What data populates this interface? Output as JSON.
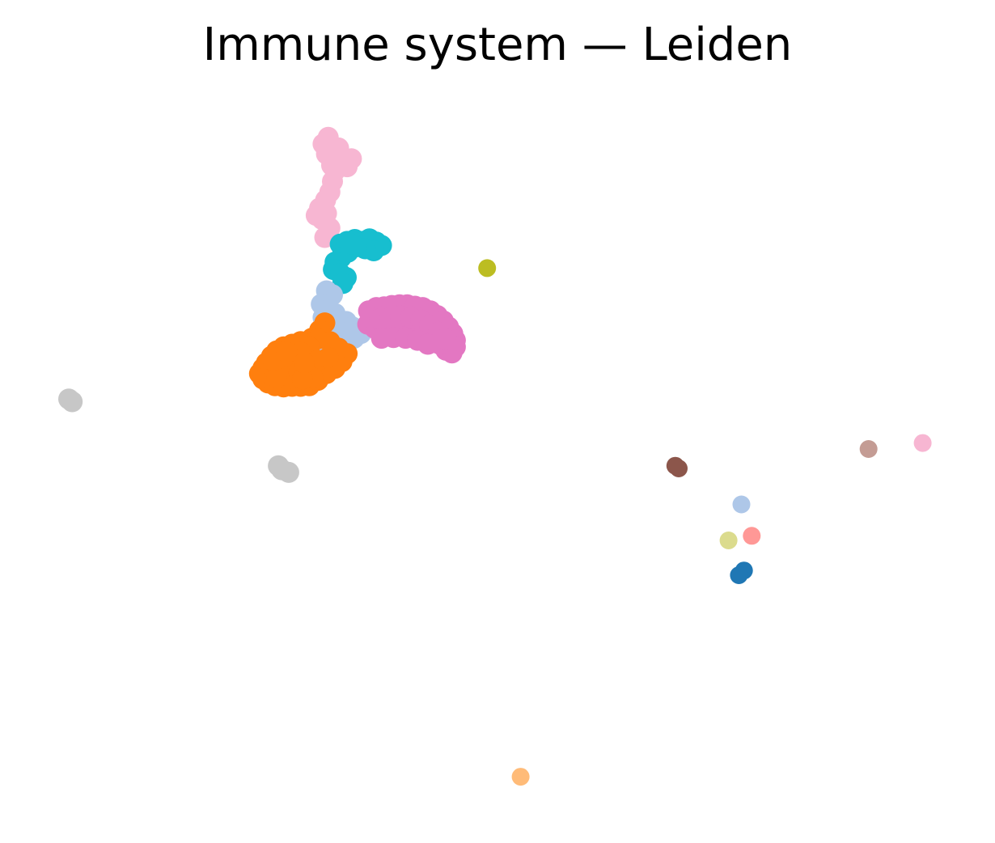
{
  "chart_data": {
    "type": "scatter",
    "title": "Immune system — Leiden",
    "xlabel": "",
    "ylabel": "",
    "axes_visible": false,
    "grid": false,
    "legend": "none",
    "xlim": [
      0,
      100
    ],
    "ylim": [
      0,
      100
    ],
    "clusters": [
      {
        "color": "#f7b6d2",
        "points": [
          [
            29.6,
            96.0
          ],
          [
            30.0,
            94.5
          ],
          [
            30.6,
            93.4
          ],
          [
            31.2,
            94.3
          ],
          [
            31.8,
            93.6
          ],
          [
            32.4,
            92.6
          ],
          [
            32.9,
            93.8
          ],
          [
            31.0,
            92.0
          ],
          [
            30.7,
            90.4
          ],
          [
            30.4,
            88.8
          ],
          [
            29.9,
            87.6
          ],
          [
            29.2,
            86.4
          ],
          [
            28.8,
            85.3
          ],
          [
            29.5,
            84.7
          ],
          [
            30.0,
            85.6
          ],
          [
            30.4,
            83.4
          ],
          [
            29.8,
            82.0
          ],
          [
            30.6,
            92.8
          ],
          [
            31.4,
            95.4
          ],
          [
            30.2,
            97.0
          ]
        ]
      },
      {
        "color": "#17becf",
        "points": [
          [
            31.6,
            81.0
          ],
          [
            32.4,
            81.4
          ],
          [
            33.3,
            81.7
          ],
          [
            34.2,
            81.4
          ],
          [
            35.0,
            81.8
          ],
          [
            35.8,
            81.3
          ],
          [
            36.4,
            80.8
          ],
          [
            35.5,
            80.0
          ],
          [
            34.5,
            80.3
          ],
          [
            33.4,
            80.6
          ],
          [
            32.5,
            79.8
          ],
          [
            31.7,
            79.0
          ],
          [
            31.0,
            78.3
          ],
          [
            30.8,
            77.2
          ],
          [
            31.6,
            76.6
          ],
          [
            32.3,
            76.0
          ],
          [
            31.9,
            75.1
          ],
          [
            32.9,
            81.0
          ]
        ]
      },
      {
        "color": "#bcbd22",
        "points": [
          [
            48.7,
            77.4
          ]
        ]
      },
      {
        "color": "#aec7e8",
        "points": [
          [
            30.0,
            74.0
          ],
          [
            30.7,
            73.4
          ],
          [
            29.4,
            72.0
          ],
          [
            30.2,
            71.2
          ],
          [
            31.0,
            70.6
          ],
          [
            29.6,
            70.0
          ],
          [
            30.4,
            69.1
          ],
          [
            31.3,
            68.8
          ],
          [
            32.3,
            69.4
          ],
          [
            33.0,
            68.6
          ],
          [
            31.8,
            67.7
          ],
          [
            30.7,
            67.0
          ],
          [
            29.9,
            66.7
          ],
          [
            31.0,
            66.0
          ],
          [
            32.2,
            66.3
          ],
          [
            33.2,
            66.9
          ],
          [
            34.0,
            67.6
          ],
          [
            30.4,
            64.9
          ],
          [
            29.3,
            66.1
          ],
          [
            32.0,
            65.0
          ]
        ]
      },
      {
        "color": "#e377c2",
        "points": [
          [
            34.9,
            71.0
          ],
          [
            35.8,
            71.5
          ],
          [
            36.7,
            71.6
          ],
          [
            37.6,
            71.8
          ],
          [
            38.5,
            71.9
          ],
          [
            39.4,
            71.9
          ],
          [
            40.3,
            71.7
          ],
          [
            41.2,
            71.5
          ],
          [
            42.1,
            71.0
          ],
          [
            42.9,
            70.3
          ],
          [
            43.6,
            69.5
          ],
          [
            44.2,
            68.6
          ],
          [
            44.7,
            67.6
          ],
          [
            45.0,
            66.6
          ],
          [
            45.0,
            65.6
          ],
          [
            44.6,
            64.7
          ],
          [
            43.9,
            65.1
          ],
          [
            43.2,
            66.0
          ],
          [
            42.4,
            66.8
          ],
          [
            41.6,
            67.4
          ],
          [
            40.6,
            67.8
          ],
          [
            39.6,
            68.0
          ],
          [
            38.6,
            68.1
          ],
          [
            37.6,
            68.2
          ],
          [
            36.6,
            68.2
          ],
          [
            35.6,
            68.4
          ],
          [
            34.8,
            69.0
          ],
          [
            35.2,
            70.0
          ],
          [
            36.2,
            69.8
          ],
          [
            37.4,
            70.0
          ],
          [
            38.6,
            70.2
          ],
          [
            39.8,
            70.0
          ],
          [
            41.0,
            69.6
          ],
          [
            42.0,
            68.8
          ],
          [
            43.0,
            67.8
          ],
          [
            43.8,
            66.8
          ],
          [
            36.4,
            66.9
          ],
          [
            37.8,
            67.0
          ],
          [
            39.2,
            66.9
          ],
          [
            40.6,
            66.6
          ],
          [
            41.8,
            66.0
          ]
        ]
      },
      {
        "color": "#ff7f0e",
        "points": [
          [
            29.8,
            69.2
          ],
          [
            29.2,
            68.1
          ],
          [
            28.3,
            66.9
          ],
          [
            27.0,
            66.4
          ],
          [
            26.0,
            66.0
          ],
          [
            25.0,
            65.6
          ],
          [
            24.2,
            65.0
          ],
          [
            23.6,
            64.2
          ],
          [
            23.0,
            63.2
          ],
          [
            22.6,
            62.4
          ],
          [
            22.2,
            61.6
          ],
          [
            22.6,
            60.8
          ],
          [
            23.2,
            60.2
          ],
          [
            24.0,
            59.8
          ],
          [
            25.0,
            59.6
          ],
          [
            26.0,
            59.7
          ],
          [
            27.0,
            59.7
          ],
          [
            28.0,
            59.8
          ],
          [
            29.0,
            60.6
          ],
          [
            30.0,
            61.6
          ],
          [
            31.0,
            62.4
          ],
          [
            31.8,
            63.4
          ],
          [
            32.4,
            64.6
          ],
          [
            31.4,
            65.4
          ],
          [
            30.4,
            66.4
          ],
          [
            29.0,
            66.8
          ],
          [
            28.0,
            65.6
          ],
          [
            27.0,
            64.8
          ],
          [
            26.0,
            63.8
          ],
          [
            25.0,
            63.0
          ],
          [
            24.4,
            62.0
          ],
          [
            25.6,
            61.2
          ],
          [
            26.8,
            61.8
          ],
          [
            28.0,
            62.6
          ],
          [
            29.0,
            63.6
          ],
          [
            30.2,
            64.0
          ],
          [
            28.4,
            61.0
          ],
          [
            27.2,
            60.8
          ],
          [
            24.2,
            61.0
          ],
          [
            23.8,
            63.6
          ],
          [
            25.4,
            64.8
          ],
          [
            27.4,
            63.2
          ]
        ]
      },
      {
        "color": "#c7c7c7",
        "points": [
          [
            0.0,
            57.8
          ],
          [
            0.4,
            57.4
          ],
          [
            24.8,
            47.2
          ],
          [
            25.6,
            46.8
          ],
          [
            24.4,
            47.8
          ]
        ]
      },
      {
        "color": "#8c564b",
        "points": [
          [
            70.6,
            47.8
          ],
          [
            71.0,
            47.4
          ]
        ]
      },
      {
        "color": "#c49c94",
        "points": [
          [
            93.1,
            50.3
          ]
        ]
      },
      {
        "color": "#f7b6d2",
        "points": [
          [
            99.4,
            51.2
          ]
        ]
      },
      {
        "color": "#aec7e8",
        "points": [
          [
            78.3,
            42.0
          ]
        ]
      },
      {
        "color": "#ff9896",
        "points": [
          [
            79.5,
            37.3
          ]
        ]
      },
      {
        "color": "#dbdb8d",
        "points": [
          [
            76.8,
            36.6
          ]
        ]
      },
      {
        "color": "#1f77b4",
        "points": [
          [
            78.6,
            32.1
          ],
          [
            78.0,
            31.4
          ]
        ]
      },
      {
        "color": "#ffbb78",
        "points": [
          [
            52.6,
            1.2
          ]
        ]
      }
    ]
  }
}
